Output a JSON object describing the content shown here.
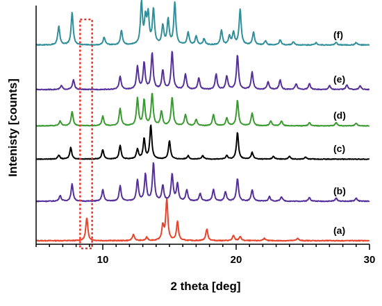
{
  "chart_data": {
    "type": "line",
    "title": "",
    "xlabel": "2 theta [deg]",
    "ylabel": "Intenisty [counts]",
    "xlim": [
      5,
      30
    ],
    "x_ticks": [
      10,
      20,
      30
    ],
    "x_tick_labels": [
      "10",
      "20",
      "30"
    ],
    "y_ticks_visible": false,
    "grid": false,
    "legend": "none",
    "highlight": {
      "type": "dotted-rectangle",
      "x_range": [
        8.3,
        9.2
      ],
      "color": "#e8302a"
    },
    "series": [
      {
        "name": "(a)",
        "color": "#e8442a",
        "peaks": [
          [
            8.8,
            0.55
          ],
          [
            12.3,
            0.15
          ],
          [
            13.3,
            0.08
          ],
          [
            14.5,
            0.35
          ],
          [
            14.8,
            1.0
          ],
          [
            15.6,
            0.45
          ],
          [
            17.8,
            0.28
          ],
          [
            19.8,
            0.12
          ],
          [
            20.3,
            0.1
          ],
          [
            22.1,
            0.06
          ],
          [
            24.6,
            0.06
          ]
        ]
      },
      {
        "name": "(b)",
        "color": "#55309a",
        "peaks": [
          [
            6.8,
            0.15
          ],
          [
            7.7,
            0.45
          ],
          [
            10.0,
            0.3
          ],
          [
            11.3,
            0.4
          ],
          [
            12.6,
            0.55
          ],
          [
            13.2,
            0.7
          ],
          [
            13.8,
            1.0
          ],
          [
            14.5,
            0.4
          ],
          [
            15.2,
            0.7
          ],
          [
            15.6,
            0.45
          ],
          [
            16.3,
            0.3
          ],
          [
            17.3,
            0.2
          ],
          [
            18.3,
            0.3
          ],
          [
            19.2,
            0.25
          ],
          [
            20.1,
            0.6
          ],
          [
            21.2,
            0.3
          ],
          [
            22.5,
            0.12
          ],
          [
            23.4,
            0.12
          ],
          [
            25.5,
            0.1
          ],
          [
            27.5,
            0.08
          ],
          [
            29.0,
            0.08
          ]
        ]
      },
      {
        "name": "(c)",
        "color": "#000000",
        "peaks": [
          [
            6.7,
            0.12
          ],
          [
            7.6,
            0.35
          ],
          [
            10.0,
            0.28
          ],
          [
            11.3,
            0.4
          ],
          [
            12.6,
            0.3
          ],
          [
            13.1,
            0.6
          ],
          [
            13.6,
            1.0
          ],
          [
            15.0,
            0.55
          ],
          [
            16.4,
            0.1
          ],
          [
            17.5,
            0.1
          ],
          [
            19.3,
            0.1
          ],
          [
            20.1,
            0.8
          ],
          [
            21.2,
            0.2
          ],
          [
            22.8,
            0.08
          ],
          [
            24.0,
            0.08
          ],
          [
            25.2,
            0.06
          ]
        ]
      },
      {
        "name": "(d)",
        "color": "#3a9a30",
        "peaks": [
          [
            6.8,
            0.15
          ],
          [
            7.7,
            0.45
          ],
          [
            10.0,
            0.3
          ],
          [
            11.3,
            0.55
          ],
          [
            12.6,
            0.85
          ],
          [
            13.1,
            0.8
          ],
          [
            13.7,
            1.0
          ],
          [
            14.4,
            0.45
          ],
          [
            15.2,
            0.9
          ],
          [
            16.2,
            0.35
          ],
          [
            17.0,
            0.2
          ],
          [
            18.3,
            0.35
          ],
          [
            19.3,
            0.25
          ],
          [
            20.1,
            0.8
          ],
          [
            21.2,
            0.4
          ],
          [
            22.6,
            0.15
          ],
          [
            23.4,
            0.15
          ],
          [
            25.5,
            0.1
          ],
          [
            27.5,
            0.1
          ],
          [
            29.0,
            0.08
          ]
        ]
      },
      {
        "name": "(e)",
        "color": "#55309a",
        "peaks": [
          [
            6.9,
            0.1
          ],
          [
            7.8,
            0.25
          ],
          [
            11.3,
            0.35
          ],
          [
            12.6,
            0.6
          ],
          [
            13.1,
            0.7
          ],
          [
            13.7,
            0.95
          ],
          [
            14.5,
            0.5
          ],
          [
            15.2,
            1.0
          ],
          [
            16.2,
            0.4
          ],
          [
            17.2,
            0.3
          ],
          [
            18.5,
            0.4
          ],
          [
            19.3,
            0.35
          ],
          [
            20.1,
            0.9
          ],
          [
            21.2,
            0.45
          ],
          [
            22.4,
            0.2
          ],
          [
            23.3,
            0.25
          ],
          [
            24.5,
            0.15
          ],
          [
            25.5,
            0.15
          ],
          [
            27.0,
            0.1
          ],
          [
            28.3,
            0.12
          ],
          [
            29.3,
            0.1
          ]
        ]
      },
      {
        "name": "(f)",
        "color": "#2e8f9a",
        "peaks": [
          [
            6.7,
            0.45
          ],
          [
            7.7,
            0.78
          ],
          [
            10.1,
            0.18
          ],
          [
            11.4,
            0.35
          ],
          [
            12.9,
            1.0
          ],
          [
            13.2,
            0.6
          ],
          [
            13.4,
            0.7
          ],
          [
            13.8,
            0.85
          ],
          [
            14.5,
            0.45
          ],
          [
            14.9,
            0.6
          ],
          [
            15.4,
            1.0
          ],
          [
            16.4,
            0.3
          ],
          [
            17.0,
            0.2
          ],
          [
            17.6,
            0.15
          ],
          [
            18.9,
            0.35
          ],
          [
            19.5,
            0.2
          ],
          [
            19.8,
            0.3
          ],
          [
            20.3,
            0.85
          ],
          [
            21.3,
            0.3
          ],
          [
            22.2,
            0.1
          ],
          [
            23.3,
            0.12
          ],
          [
            24.3,
            0.08
          ],
          [
            26.0,
            0.06
          ],
          [
            27.5,
            0.06
          ],
          [
            29.0,
            0.06
          ]
        ]
      }
    ]
  }
}
